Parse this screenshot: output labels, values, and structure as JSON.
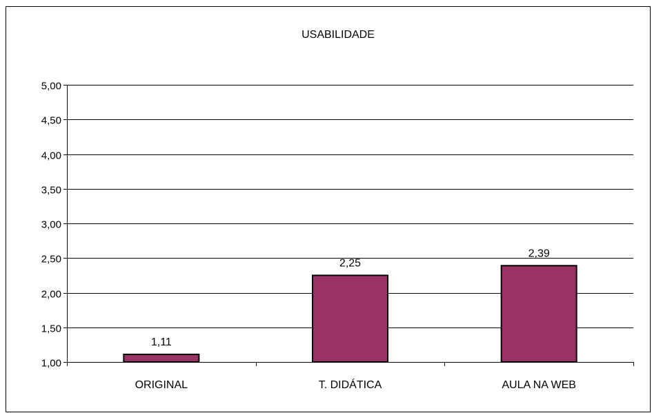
{
  "chart_data": {
    "type": "bar",
    "title": "USABILIDADE",
    "xlabel": "",
    "ylabel": "",
    "categories": [
      "ORIGINAL",
      "T. DIDÁTICA",
      "AULA NA WEB"
    ],
    "values": [
      1.11,
      2.25,
      2.39
    ],
    "value_labels": [
      "1,11",
      "2,25",
      "2,39"
    ],
    "ylim": [
      1.0,
      5.0
    ],
    "y_ticks": [
      1.0,
      1.5,
      2.0,
      2.5,
      3.0,
      3.5,
      4.0,
      4.5,
      5.0
    ],
    "y_tick_labels": [
      "1,00",
      "1,50",
      "2,00",
      "2,50",
      "3,00",
      "3,50",
      "4,00",
      "4,50",
      "5,00"
    ],
    "grid": true,
    "legend": "none",
    "bar_color": "#993366",
    "bar_border_color": "#000000"
  }
}
